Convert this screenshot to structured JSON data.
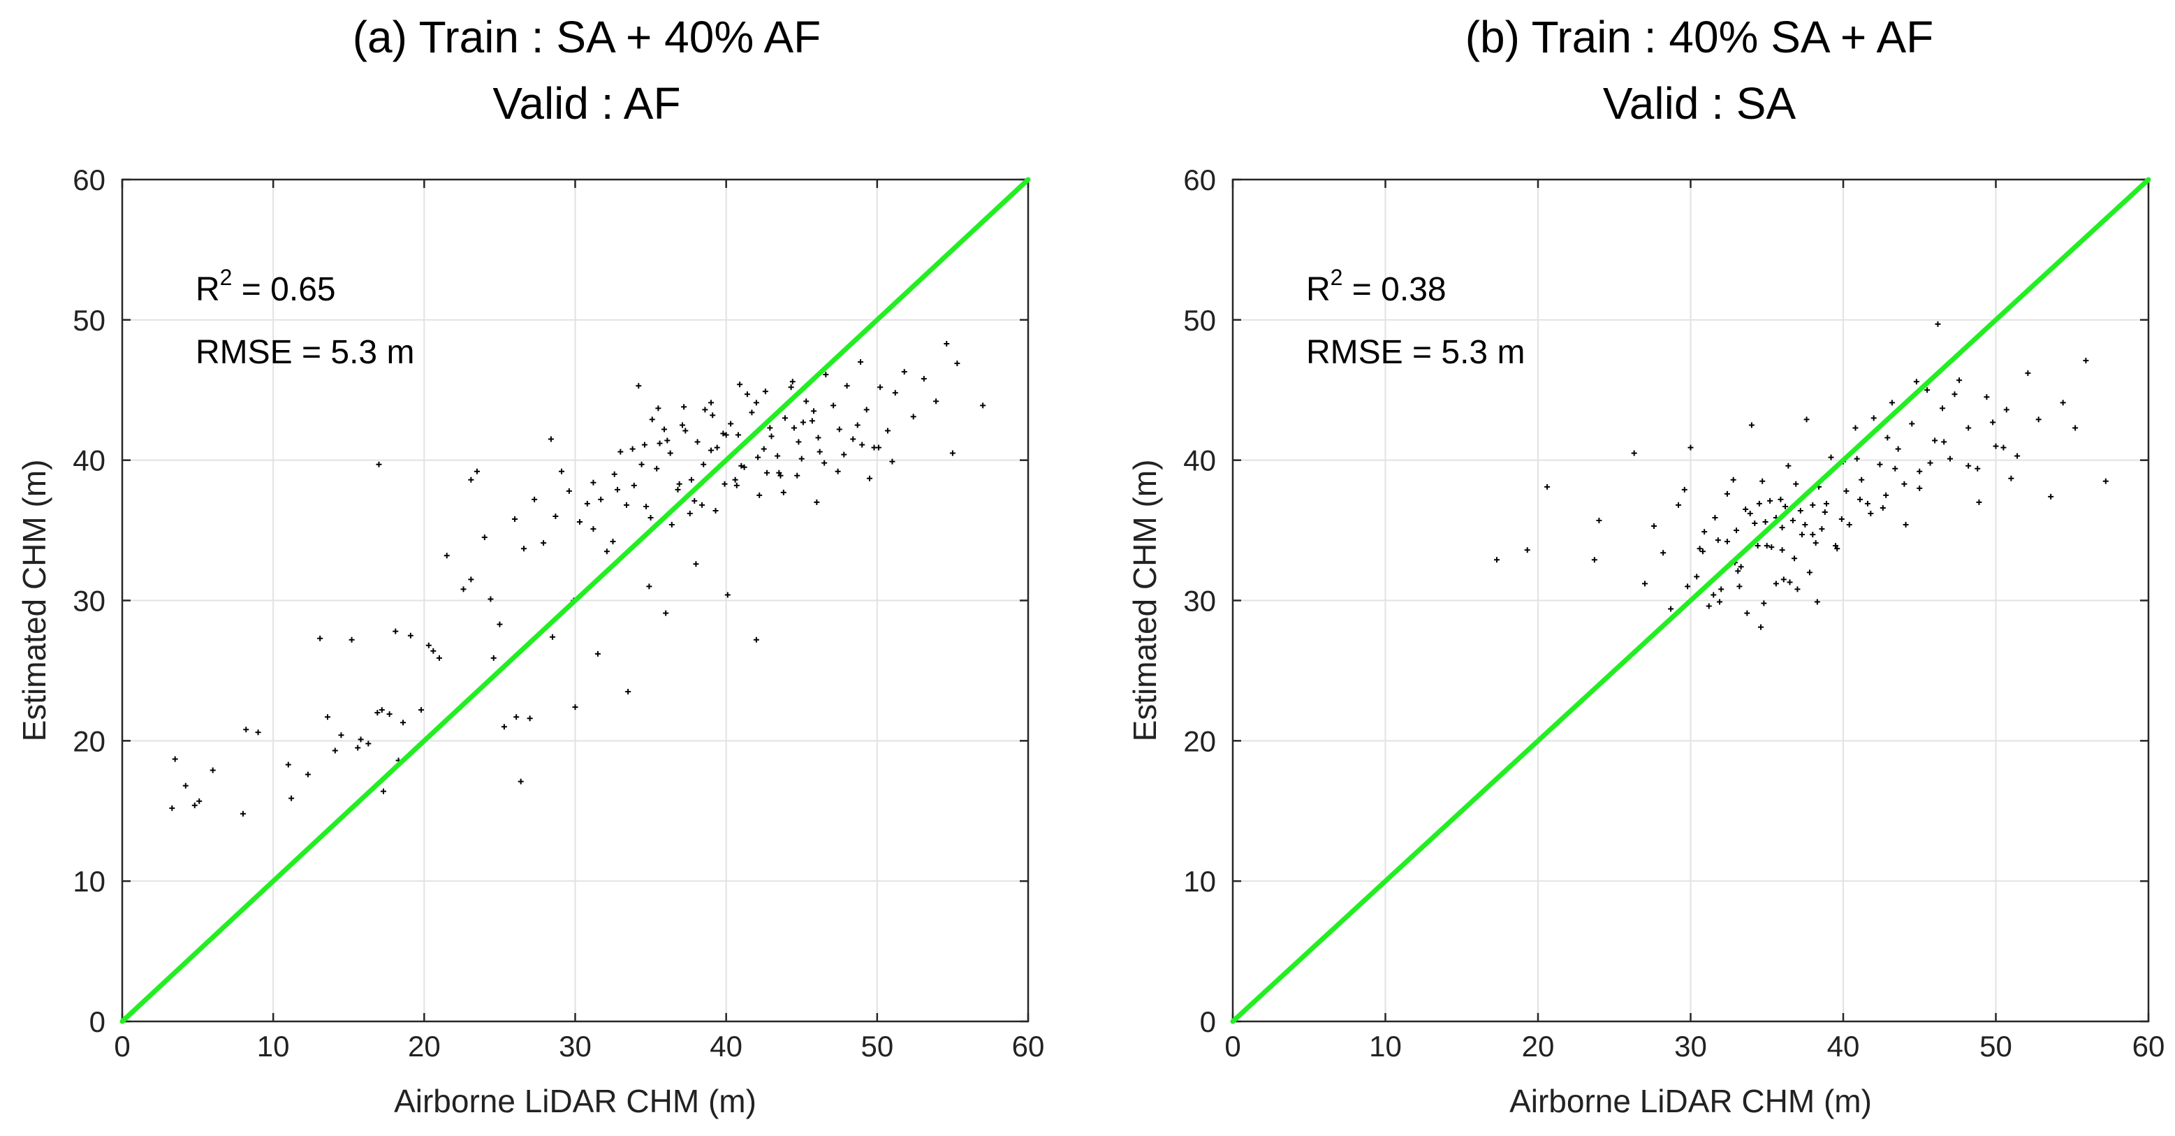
{
  "chart_data": [
    {
      "type": "scatter",
      "title": [
        "(a) Train : SA + 40% AF",
        "Valid : AF"
      ],
      "xlabel": "Airborne LiDAR CHM (m)",
      "ylabel": "Estimated CHM (m)",
      "xlim": [
        0,
        60
      ],
      "ylim": [
        0,
        60
      ],
      "xticks": [
        0,
        10,
        20,
        30,
        40,
        50,
        60
      ],
      "yticks": [
        0,
        10,
        20,
        30,
        40,
        50,
        60
      ],
      "grid": true,
      "annotation": {
        "r2_label": "R",
        "r2_sup": "2",
        "r2_value": " = 0.65",
        "rmse": "RMSE = 5.3 m"
      },
      "reference_line": {
        "name": "1:1 line",
        "x": [
          0,
          60
        ],
        "y": [
          0,
          60
        ],
        "color": "#22ee22"
      },
      "marker_color": "#000000",
      "series": [
        {
          "name": "points",
          "x": [
            3.5,
            4.2,
            4.8,
            3.3,
            5.1,
            6.0,
            8.2,
            9.0,
            8.0,
            11.2,
            11.0,
            12.3,
            13.1,
            13.6,
            14.1,
            14.5,
            15.2,
            15.6,
            15.8,
            16.3,
            16.9,
            17.3,
            17.0,
            17.7,
            18.1,
            18.3,
            18.6,
            19.1,
            19.8,
            20.3,
            20.6,
            21.0,
            21.5,
            22.1,
            22.6,
            23.1,
            23.5,
            24.0,
            24.6,
            25.0,
            25.3,
            26.1,
            26.4,
            17.2,
            23.1,
            24.4,
            26.0,
            26.6,
            27.3,
            27.9,
            28.4,
            28.7,
            29.1,
            29.6,
            29.9,
            30.3,
            30.8,
            31.2,
            31.7,
            32.1,
            32.6,
            33.0,
            33.4,
            33.9,
            34.2,
            34.6,
            35.0,
            35.4,
            35.9,
            36.3,
            36.8,
            37.2,
            37.7,
            38.1,
            38.5,
            39.0,
            39.4,
            39.9,
            40.3,
            40.8,
            41.2,
            41.7,
            42.1,
            42.6,
            43.0,
            43.5,
            43.9,
            44.4,
            44.8,
            45.3,
            45.7,
            46.2,
            46.6,
            47.1,
            47.5,
            48.0,
            48.4,
            48.9,
            49.3,
            49.8,
            50.2,
            50.7,
            51.2,
            51.8,
            52.4,
            53.1,
            53.9,
            54.6,
            55.3,
            57.0,
            55.0,
            51.0,
            49.5,
            46.0,
            42.0,
            40.1,
            38.0,
            36.0,
            34.9,
            33.5,
            31.5,
            30.0,
            28.5,
            27.0,
            35.1,
            34.7,
            35.6,
            36.4,
            37.1,
            37.9,
            38.6,
            39.3,
            40.0,
            40.7,
            41.4,
            42.2,
            42.9,
            43.6,
            44.3,
            45.0,
            45.8,
            32.5,
            33.8,
            36.9,
            38.4,
            39.8,
            41.0,
            42.5,
            43.8,
            45.1,
            46.5,
            47.8,
            49.0,
            31.2,
            32.8,
            34.4,
            36.1,
            37.6,
            39.1,
            40.6,
            42.0,
            43.4,
            44.7,
            46.1,
            47.4,
            48.7,
            50.1,
            35.5,
            37.3,
            39.0,
            40.9,
            42.7,
            44.5
          ],
          "y": [
            18.7,
            16.8,
            15.4,
            15.2,
            15.7,
            17.9,
            20.8,
            20.6,
            14.8,
            15.9,
            18.3,
            17.6,
            27.3,
            21.7,
            19.3,
            20.4,
            27.2,
            19.5,
            20.1,
            19.8,
            22.0,
            16.4,
            39.7,
            21.9,
            27.8,
            18.6,
            21.3,
            27.5,
            22.2,
            26.8,
            26.4,
            25.9,
            33.2,
            22.1,
            30.8,
            31.5,
            39.2,
            34.5,
            25.9,
            28.3,
            21.0,
            21.7,
            17.1,
            22.2,
            38.6,
            30.1,
            35.8,
            33.7,
            37.2,
            34.1,
            41.5,
            36.0,
            39.2,
            37.8,
            30.0,
            35.6,
            36.9,
            38.4,
            37.2,
            33.5,
            39.0,
            40.6,
            36.8,
            38.2,
            45.3,
            41.1,
            35.9,
            39.4,
            42.2,
            40.5,
            37.9,
            43.8,
            38.6,
            41.3,
            39.7,
            44.1,
            40.9,
            38.3,
            42.6,
            41.8,
            39.5,
            43.4,
            40.2,
            44.9,
            41.7,
            39.1,
            43.0,
            45.6,
            41.3,
            44.2,
            42.8,
            40.6,
            46.1,
            43.9,
            42.2,
            45.3,
            41.5,
            47.0,
            43.6,
            40.9,
            45.2,
            42.1,
            44.8,
            46.3,
            43.1,
            45.8,
            44.2,
            48.3,
            46.9,
            43.9,
            40.5,
            39.9,
            38.7,
            37.0,
            27.2,
            30.4,
            32.6,
            29.1,
            31.0,
            23.5,
            26.2,
            22.4,
            27.4,
            21.6,
            42.9,
            36.7,
            41.2,
            35.4,
            42.5,
            37.1,
            43.6,
            36.4,
            41.8,
            38.2,
            44.7,
            37.5,
            42.3,
            38.9,
            45.2,
            40.1,
            43.5,
            34.2,
            40.8,
            38.3,
            36.8,
            41.9,
            39.6,
            40.8,
            37.7,
            42.7,
            39.8,
            40.4,
            41.1,
            35.1,
            37.9,
            39.7,
            41.4,
            36.2,
            43.2,
            38.6,
            44.1,
            40.3,
            38.9,
            41.6,
            39.2,
            42.5,
            40.9,
            43.7,
            42.1,
            40.7,
            45.4,
            39.1,
            42.3
          ]
        }
      ]
    },
    {
      "type": "scatter",
      "title": [
        "(b) Train : 40% SA + AF",
        "Valid : SA"
      ],
      "xlabel": "Airborne LiDAR CHM (m)",
      "ylabel": "Estimated CHM (m)",
      "xlim": [
        0,
        60
      ],
      "ylim": [
        0,
        60
      ],
      "xticks": [
        0,
        10,
        20,
        30,
        40,
        50,
        60
      ],
      "yticks": [
        0,
        10,
        20,
        30,
        40,
        50,
        60
      ],
      "grid": true,
      "annotation": {
        "r2_label": "R",
        "r2_sup": "2",
        "r2_value": " = 0.38",
        "rmse": "RMSE = 5.3 m"
      },
      "reference_line": {
        "name": "1:1 line",
        "x": [
          0,
          60
        ],
        "y": [
          0,
          60
        ],
        "color": "#22ee22"
      },
      "marker_color": "#000000",
      "series": [
        {
          "name": "points",
          "x": [
            17.3,
            19.3,
            20.6,
            23.7,
            24.0,
            26.3,
            27.0,
            27.6,
            28.2,
            28.7,
            29.2,
            29.6,
            30.0,
            30.4,
            30.8,
            31.2,
            31.6,
            32.0,
            32.4,
            32.8,
            33.2,
            33.6,
            34.0,
            34.4,
            34.8,
            35.2,
            35.6,
            36.0,
            36.4,
            36.8,
            37.2,
            37.6,
            38.0,
            38.4,
            38.8,
            39.2,
            39.6,
            40.0,
            40.4,
            40.8,
            41.2,
            41.6,
            42.0,
            42.4,
            42.8,
            43.2,
            43.6,
            44.0,
            44.5,
            45.0,
            45.5,
            46.0,
            46.5,
            47.0,
            47.6,
            48.2,
            48.8,
            49.4,
            50.0,
            50.7,
            51.4,
            52.1,
            52.8,
            53.6,
            54.4,
            55.2,
            55.9,
            57.2,
            46.2,
            44.8,
            51.0,
            33.0,
            34.5,
            36.0,
            37.5,
            31.8,
            33.9,
            35.3,
            36.7,
            38.2,
            32.4,
            34.2,
            35.9,
            37.3,
            33.1,
            35.0,
            36.5,
            38.0,
            39.5,
            34.7,
            36.2,
            37.8,
            30.9,
            32.9,
            34.9,
            36.9,
            38.9,
            40.9,
            42.9,
            35.6,
            33.7,
            31.5,
            38.6,
            40.2,
            41.8,
            43.4,
            45.0,
            46.6,
            48.2,
            49.8,
            29.8,
            30.6,
            31.9,
            33.3,
            34.6,
            36.1,
            37.0,
            38.3,
            39.9,
            41.1,
            42.6,
            44.1,
            45.7,
            47.3,
            48.9,
            50.5
          ],
          "y": [
            32.9,
            33.6,
            38.1,
            32.9,
            35.7,
            40.5,
            31.2,
            35.3,
            33.4,
            29.4,
            36.8,
            37.9,
            40.9,
            31.7,
            33.5,
            29.6,
            35.9,
            30.8,
            34.2,
            38.6,
            31.0,
            36.5,
            42.5,
            33.9,
            29.8,
            37.1,
            31.2,
            35.2,
            39.6,
            33.0,
            36.4,
            42.9,
            34.7,
            38.1,
            36.3,
            40.2,
            33.7,
            39.9,
            35.4,
            42.3,
            38.6,
            36.9,
            43.0,
            39.7,
            37.5,
            44.1,
            40.8,
            38.3,
            42.6,
            39.2,
            45.0,
            41.4,
            43.7,
            40.1,
            45.7,
            42.3,
            39.4,
            44.5,
            41.0,
            43.6,
            40.3,
            46.2,
            42.9,
            37.4,
            44.1,
            42.3,
            47.1,
            38.5,
            49.7,
            45.6,
            38.7,
            35.0,
            36.9,
            33.6,
            35.4,
            34.3,
            36.2,
            33.8,
            35.7,
            34.1,
            37.6,
            35.5,
            37.2,
            34.7,
            32.1,
            33.9,
            31.3,
            36.8,
            33.9,
            38.5,
            36.7,
            32.0,
            34.9,
            32.7,
            35.6,
            38.3,
            36.9,
            40.1,
            41.6,
            35.9,
            29.1,
            30.4,
            35.1,
            37.8,
            36.2,
            39.4,
            38.0,
            41.3,
            39.6,
            42.7,
            31.0,
            33.7,
            29.9,
            32.4,
            28.1,
            31.5,
            30.8,
            29.9,
            35.8,
            37.2,
            36.6,
            35.4,
            39.8,
            44.7,
            37.0,
            40.9
          ]
        }
      ]
    }
  ]
}
